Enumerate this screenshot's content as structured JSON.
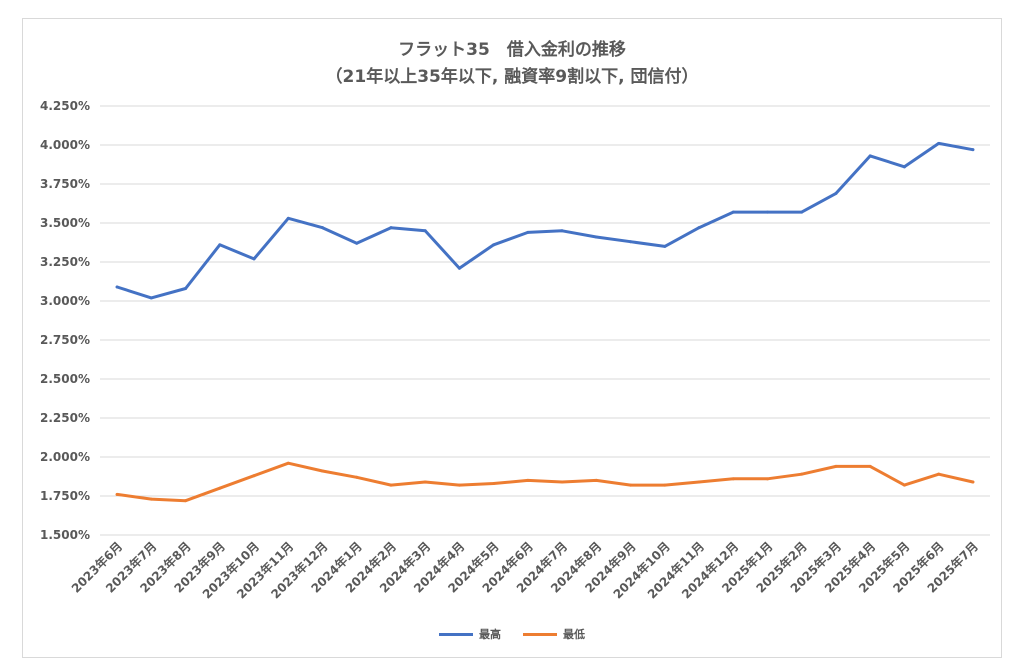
{
  "chart_data": {
    "type": "line",
    "title": "フラット35　借入金利の推移",
    "subtitle": "（21年以上35年以下, 融資率9割以下, 団信付）",
    "xlabel": "",
    "ylabel": "",
    "ylim": [
      1.5,
      4.25
    ],
    "yticks": [
      "1.500%",
      "1.750%",
      "2.000%",
      "2.250%",
      "2.500%",
      "2.750%",
      "3.000%",
      "3.250%",
      "3.500%",
      "3.750%",
      "4.000%",
      "4.250%"
    ],
    "grid": true,
    "legend": "bottom",
    "categories": [
      "2023年6月",
      "2023年7月",
      "2023年8月",
      "2023年9月",
      "2023年10月",
      "2023年11月",
      "2023年12月",
      "2024年1月",
      "2024年2月",
      "2024年3月",
      "2024年4月",
      "2024年5月",
      "2024年6月",
      "2024年7月",
      "2024年8月",
      "2024年9月",
      "2024年10月",
      "2024年11月",
      "2024年12月",
      "2025年1月",
      "2025年2月",
      "2025年3月",
      "2025年4月",
      "2025年5月",
      "2025年6月",
      "2025年7月"
    ],
    "series": [
      {
        "name": "最高",
        "color": "#4472c4",
        "values": [
          3.09,
          3.02,
          3.08,
          3.36,
          3.27,
          3.53,
          3.47,
          3.37,
          3.47,
          3.45,
          3.21,
          3.36,
          3.44,
          3.45,
          3.41,
          3.38,
          3.35,
          3.47,
          3.57,
          3.57,
          3.57,
          3.69,
          3.93,
          3.86,
          4.01,
          3.97
        ]
      },
      {
        "name": "最低",
        "color": "#ed7d31",
        "values": [
          1.76,
          1.73,
          1.72,
          1.8,
          1.88,
          1.96,
          1.91,
          1.87,
          1.82,
          1.84,
          1.82,
          1.83,
          1.85,
          1.84,
          1.85,
          1.82,
          1.82,
          1.84,
          1.86,
          1.86,
          1.89,
          1.94,
          1.94,
          1.82,
          1.89,
          1.84
        ]
      }
    ]
  }
}
